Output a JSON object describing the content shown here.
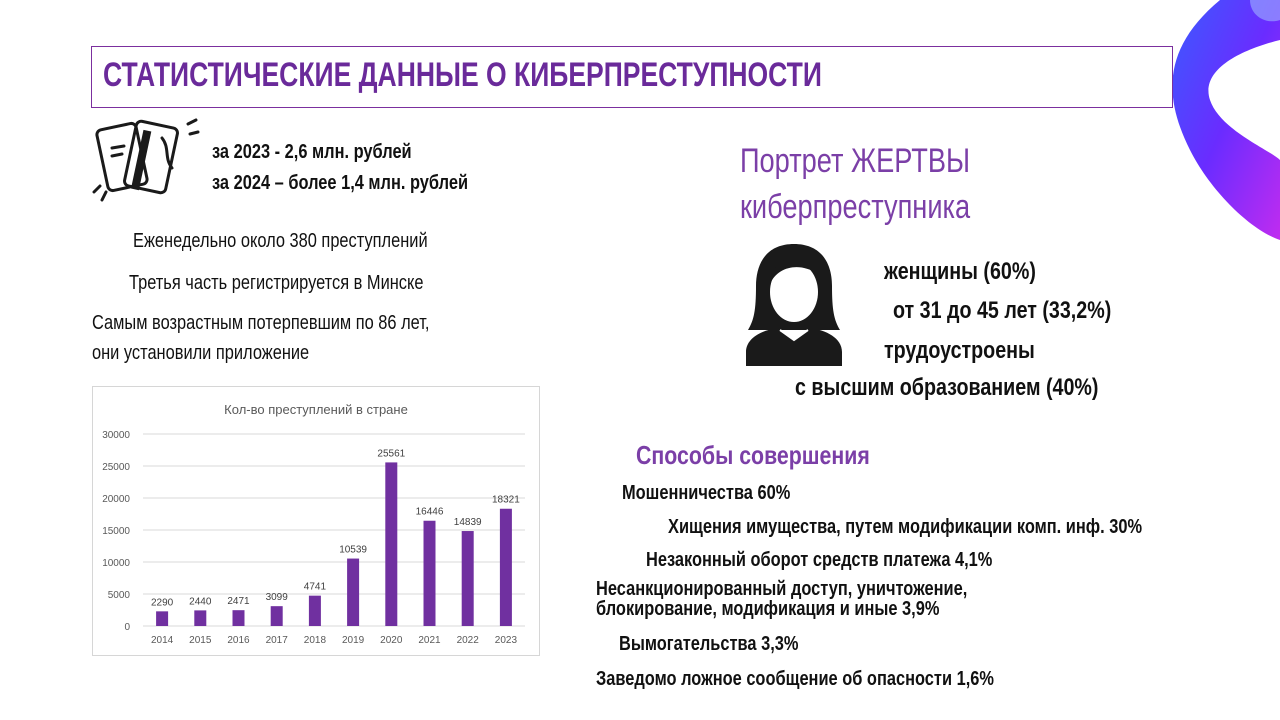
{
  "title": "СТАТИСТИЧЕСКИЕ ДАННЫЕ О КИБЕРПРЕСТУПНОСТИ",
  "damages": {
    "icon": "bank-cards-icon",
    "line_2023": "за 2023 - 2,6 млн. рублей",
    "line_2024": "за 2024 – более 1,4 млн. рублей"
  },
  "facts": {
    "weekly": "Еженедельно около 380 преступлений",
    "minsk": "Третья часть регистрируется в Минске",
    "oldest_line1": "Самым возрастным потерпевшим по 86 лет,",
    "oldest_line2": "они установили приложение"
  },
  "victim": {
    "heading_line1": "Портрет ЖЕРТВЫ",
    "heading_line2": "киберпреступника",
    "icon": "woman-avatar-icon",
    "women": "женщины (60%)",
    "age": "от 31 до 45 лет (33,2%)",
    "employed": "трудоустроены",
    "education": "с высшим образованием (40%)"
  },
  "methods": {
    "heading": "Способы совершения",
    "fraud": "Мошенничества 60%",
    "theft": "Хищения имущества, путем модификации комп. инф. 30%",
    "payment": "Незаконный оборот средств платежа 4,1%",
    "access_line1": "Несанкционированный доступ, уничтожение,",
    "access_line2": "блокирование, модификация и иные 3,9%",
    "extortion": "Вымогательства 3,3%",
    "false_report": "Заведомо ложное сообщение об опасности 1,6%"
  },
  "colors": {
    "accent": "#7b3fa7",
    "bar": "#7030a0",
    "title": "#6a2a9a"
  },
  "chart_data": {
    "type": "bar",
    "title": "Кол-во преступлений в стране",
    "categories": [
      "2014",
      "2015",
      "2016",
      "2017",
      "2018",
      "2019",
      "2020",
      "2021",
      "2022",
      "2023"
    ],
    "values": [
      2290,
      2440,
      2471,
      3099,
      4741,
      10539,
      25561,
      16446,
      14839,
      18321
    ],
    "ylim": [
      0,
      30000
    ],
    "yticks": [
      0,
      5000,
      10000,
      15000,
      20000,
      25000,
      30000
    ],
    "grid": true,
    "xlabel": "",
    "ylabel": ""
  }
}
